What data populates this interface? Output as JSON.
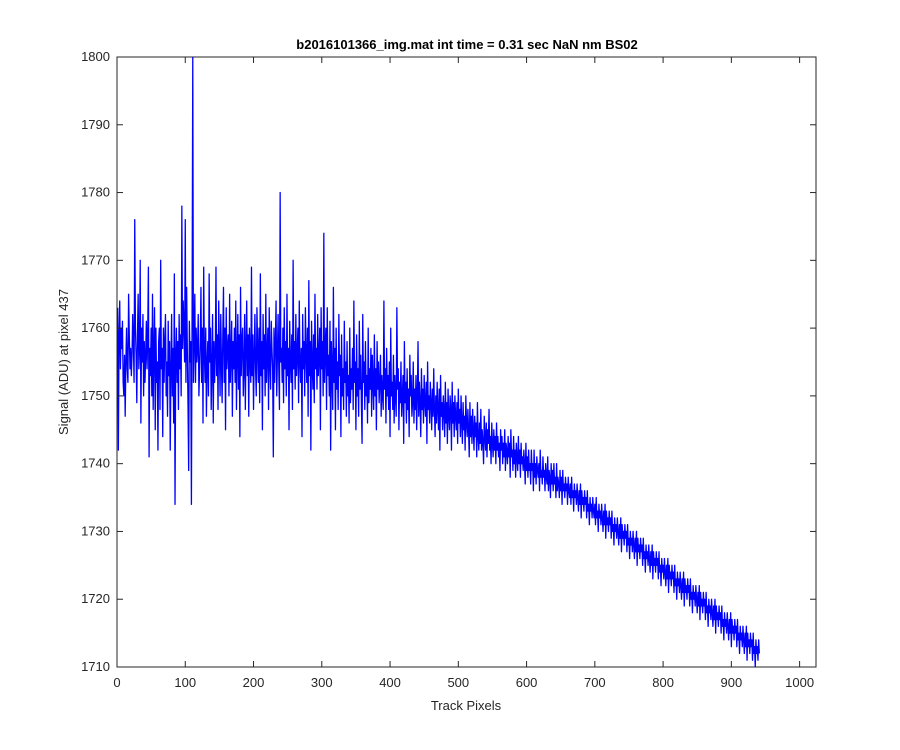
{
  "chart_data": {
    "type": "line",
    "title": "b2016101366_img.mat int time = 0.31 sec  NaN nm BS02",
    "xlabel": "Track Pixels",
    "ylabel": "Signal (ADU) at pixel 437",
    "xlim": [
      0,
      1024
    ],
    "ylim": [
      1710,
      1800
    ],
    "x_ticks": [
      0,
      100,
      200,
      300,
      400,
      500,
      600,
      700,
      800,
      900,
      1000
    ],
    "y_ticks": [
      1710,
      1720,
      1730,
      1740,
      1750,
      1760,
      1770,
      1780,
      1790,
      1800
    ],
    "grid": false,
    "box": true,
    "series_color": "#0000ff",
    "series": [
      {
        "x_start": 1,
        "x_step": 1,
        "note_count": 1024,
        "values": [
          1763,
          1742,
          1759,
          1764,
          1754,
          1760,
          1757,
          1761,
          1752,
          1750,
          1756,
          1747,
          1755,
          1760,
          1754,
          1752,
          1765,
          1759,
          1754,
          1757,
          1753,
          1756,
          1762,
          1758,
          1752,
          1776,
          1760,
          1756,
          1749,
          1759,
          1765,
          1754,
          1757,
          1770,
          1746,
          1760,
          1755,
          1762,
          1750,
          1758,
          1752,
          1756,
          1761,
          1754,
          1759,
          1769,
          1741,
          1757,
          1753,
          1760,
          1750,
          1765,
          1748,
          1757,
          1763,
          1745,
          1760,
          1752,
          1755,
          1742,
          1758,
          1760,
          1748,
          1770,
          1754,
          1757,
          1744,
          1760,
          1752,
          1758,
          1762,
          1750,
          1755,
          1747,
          1761,
          1753,
          1758,
          1742,
          1754,
          1762,
          1750,
          1757,
          1746,
          1768,
          1734,
          1756,
          1760,
          1752,
          1758,
          1748,
          1762,
          1754,
          1759,
          1750,
          1778,
          1757,
          1764,
          1760,
          1755,
          1776,
          1752,
          1766,
          1757,
          1749,
          1739,
          1761,
          1755,
          1758,
          1734,
          1762,
          1800,
          1752,
          1758,
          1765,
          1752,
          1760,
          1755,
          1757,
          1762,
          1750,
          1754,
          1758,
          1766,
          1752,
          1760,
          1746,
          1769,
          1756,
          1752,
          1760,
          1747,
          1755,
          1758,
          1750,
          1768,
          1755,
          1760,
          1748,
          1754,
          1762,
          1746,
          1758,
          1752,
          1756,
          1769,
          1753,
          1759,
          1748,
          1764,
          1757,
          1750,
          1762,
          1755,
          1749,
          1759,
          1766,
          1752,
          1760,
          1745,
          1763,
          1754,
          1757,
          1759,
          1750,
          1765,
          1752,
          1756,
          1761,
          1747,
          1758,
          1754,
          1760,
          1752,
          1764,
          1748,
          1756,
          1762,
          1751,
          1759,
          1744,
          1766,
          1753,
          1758,
          1760,
          1750,
          1754,
          1762,
          1748,
          1757,
          1764,
          1753,
          1759,
          1747,
          1760,
          1756,
          1752,
          1769,
          1753,
          1759,
          1748,
          1756,
          1762,
          1754,
          1750,
          1763,
          1757,
          1752,
          1760,
          1749,
          1768,
          1753,
          1758,
          1745,
          1762,
          1754,
          1759,
          1750,
          1765,
          1752,
          1756,
          1760,
          1748,
          1763,
          1755,
          1751,
          1761,
          1757,
          1754,
          1741,
          1760,
          1752,
          1758,
          1764,
          1750,
          1756,
          1762,
          1754,
          1748,
          1780,
          1755,
          1757,
          1752,
          1760,
          1749,
          1763,
          1754,
          1758,
          1750,
          1765,
          1753,
          1757,
          1745,
          1761,
          1755,
          1752,
          1759,
          1748,
          1770,
          1754,
          1758,
          1751,
          1762,
          1753,
          1756,
          1760,
          1749,
          1764,
          1755,
          1752,
          1757,
          1744,
          1762,
          1754,
          1758,
          1750,
          1763,
          1756,
          1752,
          1760,
          1747,
          1767,
          1753,
          1758,
          1742,
          1761,
          1755,
          1751,
          1759,
          1749,
          1765,
          1754,
          1757,
          1751,
          1762,
          1753,
          1756,
          1760,
          1745,
          1763,
          1754,
          1758,
          1750,
          1774,
          1752,
          1757,
          1760,
          1748,
          1763,
          1753,
          1756,
          1750,
          1761,
          1742,
          1758,
          1754,
          1748,
          1766,
          1752,
          1757,
          1745,
          1760,
          1751,
          1755,
          1748,
          1762,
          1753,
          1756,
          1744,
          1759,
          1750,
          1754,
          1748,
          1761,
          1752,
          1755,
          1747,
          1758,
          1750,
          1753,
          1746,
          1760,
          1749,
          1754,
          1751,
          1757,
          1748,
          1764,
          1752,
          1755,
          1745,
          1759,
          1750,
          1754,
          1747,
          1761,
          1751,
          1756,
          1749,
          1743,
          1762,
          1752,
          1755,
          1748,
          1758,
          1750,
          1753,
          1746,
          1760,
          1749,
          1754,
          1751,
          1757,
          1747,
          1756,
          1752,
          1748,
          1759,
          1750,
          1754,
          1745,
          1758,
          1751,
          1755,
          1749,
          1752,
          1756,
          1747,
          1753,
          1750,
          1748,
          1764,
          1751,
          1754,
          1746,
          1757,
          1750,
          1753,
          1748,
          1755,
          1744,
          1760,
          1750,
          1752,
          1748,
          1756,
          1746,
          1753,
          1750,
          1747,
          1763,
          1751,
          1754,
          1745,
          1752,
          1749,
          1755,
          1747,
          1750,
          1753,
          1743,
          1758,
          1749,
          1752,
          1746,
          1754,
          1748,
          1751,
          1744,
          1756,
          1750,
          1753,
          1747,
          1749,
          1755,
          1746,
          1751,
          1748,
          1753,
          1745,
          1750,
          1758,
          1747,
          1752,
          1749,
          1744,
          1754,
          1748,
          1751,
          1746,
          1753,
          1749,
          1747,
          1752,
          1743,
          1755,
          1748,
          1750,
          1746,
          1752,
          1749,
          1745,
          1751,
          1747,
          1754,
          1748,
          1744,
          1750,
          1746,
          1752,
          1748,
          1745,
          1751,
          1742,
          1753,
          1747,
          1749,
          1745,
          1750,
          1748,
          1744,
          1752,
          1746,
          1749,
          1743,
          1751,
          1747,
          1745,
          1750,
          1748,
          1742,
          1752,
          1746,
          1749,
          1744,
          1750,
          1747,
          1745,
          1749,
          1743,
          1751,
          1746,
          1748,
          1744,
          1750,
          1746,
          1743,
          1749,
          1745,
          1747,
          1742,
          1750,
          1746,
          1744,
          1748,
          1745,
          1741,
          1749,
          1744,
          1747,
          1743,
          1748,
          1745,
          1742,
          1747,
          1744,
          1746,
          1741,
          1749,
          1744,
          1742,
          1746,
          1743,
          1748,
          1742,
          1745,
          1743,
          1740,
          1747,
          1744,
          1742,
          1746,
          1741,
          1745,
          1743,
          1748,
          1742,
          1744,
          1740,
          1746,
          1743,
          1741,
          1745,
          1742,
          1744,
          1740,
          1746,
          1742,
          1744,
          1741,
          1743,
          1739,
          1745,
          1742,
          1744,
          1740,
          1743,
          1741,
          1745,
          1739,
          1743,
          1742,
          1740,
          1744,
          1741,
          1743,
          1738,
          1745,
          1741,
          1742,
          1739,
          1744,
          1740,
          1742,
          1738,
          1743,
          1741,
          1739,
          1744,
          1740,
          1742,
          1738,
          1743,
          1740,
          1741,
          1739,
          1742,
          1740,
          1737,
          1743,
          1739,
          1741,
          1738,
          1742,
          1739,
          1740,
          1737,
          1742,
          1739,
          1740,
          1736,
          1742,
          1738,
          1740,
          1737,
          1741,
          1739,
          1738,
          1740,
          1736,
          1742,
          1738,
          1739,
          1737,
          1741,
          1738,
          1739,
          1736,
          1740,
          1738,
          1737,
          1741,
          1736,
          1739,
          1738,
          1735,
          1740,
          1737,
          1739,
          1736,
          1740,
          1737,
          1738,
          1735,
          1740,
          1736,
          1738,
          1737,
          1735,
          1739,
          1736,
          1738,
          1734,
          1739,
          1736,
          1737,
          1735,
          1738,
          1736,
          1737,
          1734,
          1738,
          1736,
          1735,
          1737,
          1734,
          1738,
          1735,
          1736,
          1733,
          1737,
          1735,
          1736,
          1734,
          1737,
          1735,
          1733,
          1736,
          1734,
          1737,
          1732,
          1736,
          1734,
          1735,
          1733,
          1736,
          1734,
          1735,
          1732,
          1736,
          1733,
          1734,
          1731,
          1735,
          1733,
          1734,
          1732,
          1735,
          1733,
          1732,
          1734,
          1731,
          1735,
          1732,
          1733,
          1730,
          1734,
          1732,
          1733,
          1731,
          1734,
          1732,
          1730,
          1733,
          1731,
          1734,
          1729,
          1733,
          1731,
          1732,
          1730,
          1733,
          1731,
          1732,
          1729,
          1733,
          1730,
          1731,
          1728,
          1732,
          1730,
          1731,
          1729,
          1732,
          1730,
          1728,
          1731,
          1729,
          1732,
          1727,
          1731,
          1729,
          1730,
          1728,
          1731,
          1729,
          1730,
          1727,
          1731,
          1728,
          1729,
          1726,
          1730,
          1728,
          1729,
          1727,
          1730,
          1728,
          1726,
          1729,
          1727,
          1730,
          1725,
          1729,
          1727,
          1728,
          1726,
          1729,
          1727,
          1728,
          1725,
          1729,
          1726,
          1727,
          1724,
          1728,
          1726,
          1727,
          1725,
          1728,
          1726,
          1724,
          1727,
          1725,
          1728,
          1723,
          1727,
          1725,
          1726,
          1724,
          1727,
          1725,
          1726,
          1723,
          1727,
          1724,
          1725,
          1722,
          1726,
          1724,
          1725,
          1723,
          1726,
          1724,
          1722,
          1725,
          1723,
          1726,
          1721,
          1725,
          1723,
          1724,
          1722,
          1725,
          1723,
          1724,
          1721,
          1725,
          1722,
          1723,
          1720,
          1724,
          1722,
          1723,
          1721,
          1724,
          1722,
          1720,
          1723,
          1721,
          1724,
          1719,
          1723,
          1721,
          1722,
          1720,
          1723,
          1721,
          1722,
          1719,
          1723,
          1720,
          1721,
          1718,
          1722,
          1720,
          1721,
          1719,
          1722,
          1720,
          1718,
          1721,
          1719,
          1722,
          1717,
          1721,
          1719,
          1720,
          1718,
          1721,
          1719,
          1720,
          1717,
          1721,
          1718,
          1719,
          1716,
          1720,
          1718,
          1719,
          1717,
          1720,
          1718,
          1716,
          1719,
          1717,
          1720,
          1715,
          1719,
          1717,
          1718,
          1716,
          1719,
          1717,
          1718,
          1715,
          1719,
          1716,
          1717,
          1714,
          1718,
          1716,
          1717,
          1715,
          1718,
          1716,
          1714,
          1717,
          1715,
          1718,
          1713,
          1717,
          1715,
          1716,
          1714,
          1717,
          1715,
          1716,
          1713,
          1717,
          1714,
          1715,
          1712,
          1716,
          1714,
          1715,
          1713,
          1716,
          1714,
          1712,
          1715,
          1713,
          1716,
          1711,
          1715,
          1713,
          1714,
          1712,
          1715,
          1713,
          1714,
          1711,
          1715,
          1712,
          1713,
          1710,
          1714,
          1712,
          1713,
          1711,
          1714,
          1712
        ]
      }
    ]
  }
}
